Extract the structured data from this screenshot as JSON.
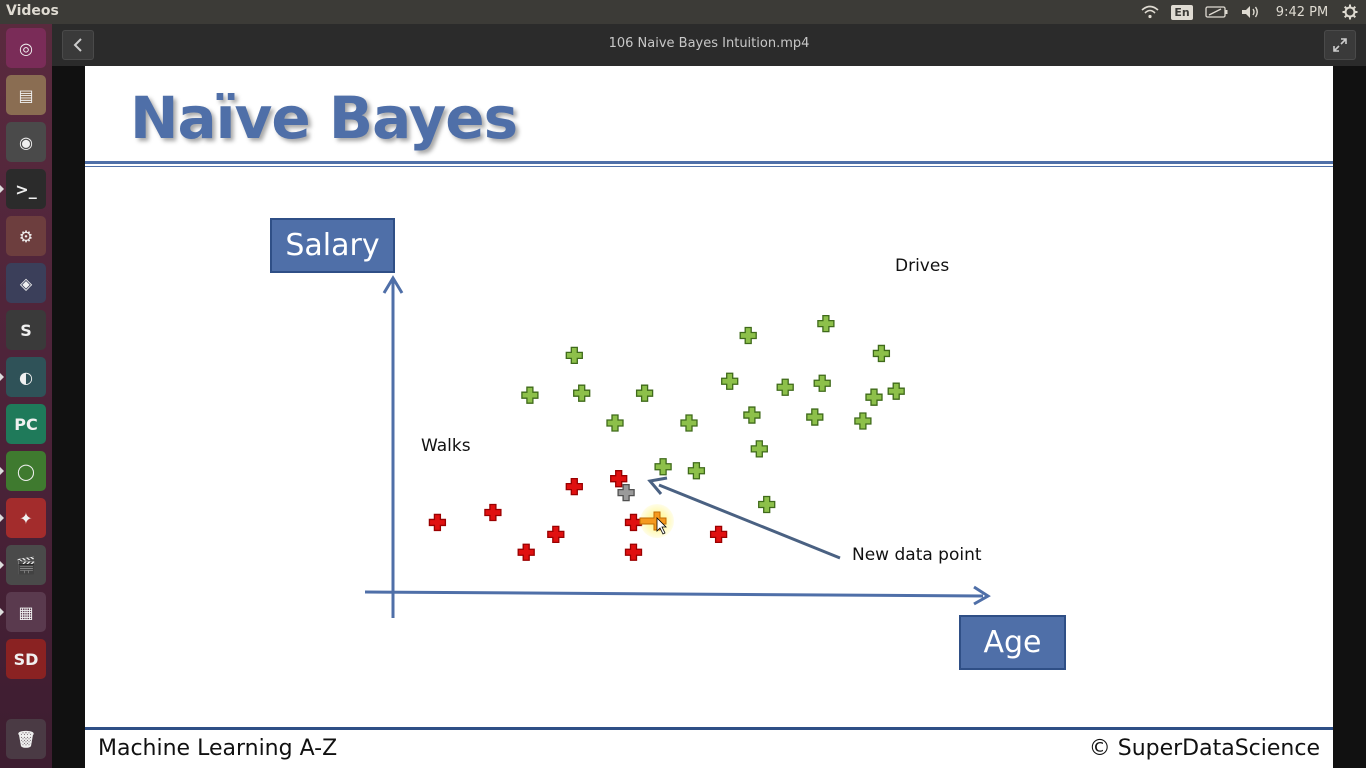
{
  "topbar": {
    "app_title": "Videos",
    "keyboard_layout": "En",
    "time": "9:42 PM",
    "icons": [
      "wifi-icon",
      "battery-icon",
      "volume-icon",
      "settings-gear-icon"
    ]
  },
  "launcher": {
    "items": [
      {
        "name": "ubuntu-dash-icon",
        "color": "#7a2c58"
      },
      {
        "name": "files-icon",
        "color": "#8a6d52"
      },
      {
        "name": "chrome-icon",
        "color": "#4a4a4a"
      },
      {
        "name": "terminal-icon",
        "color": "#2b2b2b"
      },
      {
        "name": "system-settings-icon",
        "color": "#6d3e3e"
      },
      {
        "name": "vscode-icon",
        "color": "#3b3f5a"
      },
      {
        "name": "sublime-text-icon",
        "color": "#3a3a3a"
      },
      {
        "name": "gitkraken-icon",
        "color": "#2f5258"
      },
      {
        "name": "pycharm-icon",
        "color": "#1f7a5a"
      },
      {
        "name": "rstudio-icon",
        "color": "#3f7a2f"
      },
      {
        "name": "network-app-icon",
        "color": "#a32c2c"
      },
      {
        "name": "video-player-icon",
        "color": "#4a4a4a"
      },
      {
        "name": "workspace-switcher-icon",
        "color": "#5a3a4e"
      },
      {
        "name": "sd-card-icon",
        "color": "#8a2222"
      },
      {
        "name": "trash-icon",
        "color": "#4a3a44"
      }
    ]
  },
  "video": {
    "title": "106 Naive Bayes Intuition.mp4"
  },
  "slide": {
    "title": "Naïve Bayes",
    "footer_left": "Machine Learning A-Z",
    "footer_right": "© SuperDataScience",
    "accent_color": "#4f6fa8"
  },
  "chart_data": {
    "type": "scatter",
    "xlabel": "Age",
    "ylabel": "Salary",
    "annotations": {
      "walks": "Walks",
      "drives": "Drives",
      "new_point": "New data point"
    },
    "series": [
      {
        "name": "Walks",
        "color": "#e01010",
        "points": [
          [
            0.6,
            1.8
          ],
          [
            1.35,
            2.05
          ],
          [
            1.8,
            1.05
          ],
          [
            2.2,
            1.5
          ],
          [
            2.45,
            2.7
          ],
          [
            3.05,
            2.9
          ],
          [
            3.25,
            1.8
          ],
          [
            3.25,
            1.05
          ],
          [
            4.4,
            1.5
          ]
        ]
      },
      {
        "name": "Drives",
        "color": "#8dc04a",
        "points": [
          [
            1.85,
            5.0
          ],
          [
            2.45,
            6.0
          ],
          [
            2.55,
            5.05
          ],
          [
            3.0,
            4.3
          ],
          [
            3.4,
            5.05
          ],
          [
            3.65,
            3.2
          ],
          [
            4.0,
            4.3
          ],
          [
            4.1,
            3.1
          ],
          [
            4.55,
            5.35
          ],
          [
            4.8,
            6.5
          ],
          [
            4.85,
            4.5
          ],
          [
            4.95,
            3.65
          ],
          [
            5.05,
            2.25
          ],
          [
            5.3,
            5.2
          ],
          [
            5.7,
            4.45
          ],
          [
            5.8,
            5.3
          ],
          [
            5.85,
            6.8
          ],
          [
            6.35,
            4.35
          ],
          [
            6.5,
            4.95
          ],
          [
            6.6,
            6.05
          ],
          [
            6.8,
            5.1
          ]
        ]
      },
      {
        "name": "New data point",
        "color": "#9a9a9a",
        "points": [
          [
            3.15,
            2.55
          ]
        ]
      }
    ],
    "xlim": [
      0,
      8
    ],
    "ylim": [
      0,
      8.5
    ]
  }
}
